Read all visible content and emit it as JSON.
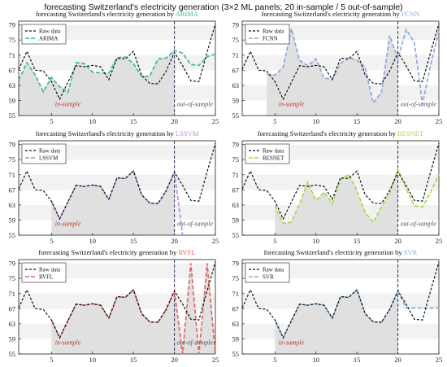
{
  "title": "forecasting Switzerland's electricity generation (3×2 ML panels; 20 in-sample / 5 out-of-sample)",
  "panel_title_prefix": "forecasting Switzerland's electricity generation by",
  "colors": {
    "raw": "#111111",
    "shade": "#e0e0e0",
    "band": "#f2f2f2",
    "marker": "#333355",
    "in_sample_text": "#c0392b",
    "out_sample_text": "#555555"
  },
  "chart_data": [
    {
      "type": "line",
      "model": "ARIMA",
      "model_color": "#3cb7a0",
      "x": [
        1,
        2,
        3,
        4,
        5,
        6,
        7,
        8,
        9,
        10,
        11,
        12,
        13,
        14,
        15,
        16,
        17,
        18,
        19,
        20,
        21,
        22,
        23,
        24,
        25
      ],
      "series": [
        {
          "name": "Raw data",
          "values": [
            67.2,
            72.0,
            67.0,
            66.8,
            64.0,
            59.3,
            63.8,
            68.2,
            67.9,
            68.3,
            67.9,
            64.5,
            70.2,
            70.0,
            72.0,
            65.7,
            63.5,
            63.4,
            66.8,
            71.7,
            68.2,
            64.2,
            64.0,
            71.8,
            79.3
          ]
        },
        {
          "name": "ARIMA",
          "values": [
            64.4,
            69.0,
            65.8,
            61.3,
            65.1,
            62.6,
            61.1,
            69.0,
            68.8,
            66.5,
            66.3,
            66.3,
            70.3,
            70.5,
            68.8,
            65.4,
            65.4,
            70.0,
            70.2,
            72.3,
            71.5,
            68.5,
            68.3,
            70.6,
            71.3
          ]
        }
      ],
      "xlim": [
        1,
        25
      ],
      "ylim": [
        55,
        80
      ],
      "xticks": [
        5,
        10,
        15,
        20,
        25
      ],
      "yticks": [
        55,
        59,
        63,
        67,
        71,
        75,
        79
      ],
      "split_x": 20,
      "shaded": "forecast",
      "annotations": [
        "in-sample",
        "out-of-sample"
      ]
    },
    {
      "type": "line",
      "model": "FCNN",
      "model_color": "#8fa8d8",
      "x": [
        1,
        2,
        3,
        4,
        5,
        6,
        7,
        8,
        9,
        10,
        11,
        12,
        13,
        14,
        15,
        16,
        17,
        18,
        19,
        20,
        21,
        22,
        23,
        24,
        25
      ],
      "series": [
        {
          "name": "Raw data",
          "values": [
            67.2,
            72.0,
            67.0,
            66.8,
            64.0,
            59.3,
            63.8,
            68.2,
            67.9,
            68.3,
            67.9,
            64.5,
            70.2,
            70.0,
            72.0,
            65.7,
            63.5,
            63.4,
            66.8,
            71.7,
            68.2,
            64.2,
            64.0,
            71.8,
            79.3
          ]
        },
        {
          "name": "FCNN",
          "values": [
            null,
            null,
            null,
            65.9,
            65.7,
            67.8,
            78.0,
            69.6,
            68.2,
            70.0,
            64.9,
            64.7,
            68.8,
            70.3,
            69.7,
            67.8,
            58.3,
            61.2,
            76.2,
            70.0,
            77.8,
            74.4,
            58.0,
            68.4,
            77.5
          ]
        }
      ],
      "xlim": [
        1,
        25
      ],
      "ylim": [
        55,
        80
      ],
      "xticks": [
        5,
        10,
        15,
        20,
        25
      ],
      "yticks": [
        55,
        59,
        63,
        67,
        71,
        75,
        79
      ],
      "split_x": 20,
      "shaded": "forecast",
      "annotations": [
        "in-sample",
        "out-of-sample"
      ]
    },
    {
      "type": "line",
      "model": "LSSVM",
      "model_color": "#b98be0",
      "x": [
        1,
        2,
        3,
        4,
        5,
        6,
        7,
        8,
        9,
        10,
        11,
        12,
        13,
        14,
        15,
        16,
        17,
        18,
        19,
        20,
        21,
        22,
        23,
        24,
        25
      ],
      "series": [
        {
          "name": "Raw data",
          "values": [
            67.2,
            72.0,
            67.0,
            66.8,
            64.0,
            59.3,
            63.8,
            68.2,
            67.9,
            68.3,
            67.9,
            64.5,
            70.2,
            70.0,
            72.0,
            65.7,
            63.5,
            63.4,
            66.8,
            71.7,
            68.2,
            64.2,
            64.0,
            71.8,
            79.3
          ]
        },
        {
          "name": "LSSVM",
          "values": [
            null,
            null,
            null,
            null,
            64.0,
            59.3,
            63.8,
            68.2,
            67.9,
            68.3,
            67.9,
            64.5,
            70.2,
            70.0,
            72.0,
            65.7,
            63.5,
            63.4,
            66.8,
            71.7,
            55.0,
            null,
            null,
            null,
            null
          ]
        }
      ],
      "xlim": [
        1,
        25
      ],
      "ylim": [
        55,
        80
      ],
      "xticks": [
        5,
        10,
        15,
        20,
        25
      ],
      "yticks": [
        55,
        59,
        63,
        67,
        71,
        75,
        79
      ],
      "split_x": 20,
      "shaded": "forecast",
      "annotations": [
        "in-sample",
        "out-of-sample"
      ]
    },
    {
      "type": "line",
      "model": "RESNET",
      "model_color": "#a6d94a",
      "x": [
        1,
        2,
        3,
        4,
        5,
        6,
        7,
        8,
        9,
        10,
        11,
        12,
        13,
        14,
        15,
        16,
        17,
        18,
        19,
        20,
        21,
        22,
        23,
        24,
        25
      ],
      "series": [
        {
          "name": "Raw data",
          "values": [
            67.2,
            72.0,
            67.0,
            66.8,
            64.0,
            59.3,
            63.8,
            68.2,
            67.9,
            68.3,
            67.9,
            64.5,
            70.2,
            70.0,
            72.0,
            65.7,
            63.5,
            63.4,
            66.8,
            71.7,
            68.2,
            64.2,
            64.0,
            71.8,
            79.3
          ]
        },
        {
          "name": "RESNET",
          "values": [
            null,
            null,
            null,
            null,
            62.9,
            58.2,
            58.5,
            63.3,
            69.0,
            64.2,
            66.4,
            63.4,
            69.8,
            71.1,
            66.8,
            61.0,
            58.4,
            62.5,
            66.2,
            72.5,
            67.2,
            62.8,
            62.4,
            66.4,
            71.1
          ]
        }
      ],
      "xlim": [
        1,
        25
      ],
      "ylim": [
        55,
        80
      ],
      "xticks": [
        5,
        10,
        15,
        20,
        25
      ],
      "yticks": [
        55,
        59,
        63,
        67,
        71,
        75,
        79
      ],
      "split_x": 20,
      "shaded": "forecast",
      "annotations": [
        "out-of-sample"
      ]
    },
    {
      "type": "line",
      "model": "RVFL",
      "model_color": "#e06666",
      "x": [
        1,
        2,
        3,
        4,
        5,
        6,
        7,
        8,
        9,
        10,
        11,
        12,
        13,
        14,
        15,
        16,
        17,
        18,
        19,
        20,
        21,
        22,
        23,
        24,
        25
      ],
      "series": [
        {
          "name": "Raw data",
          "values": [
            67.2,
            72.0,
            67.0,
            66.8,
            64.0,
            59.3,
            63.8,
            68.2,
            67.9,
            68.3,
            67.9,
            64.5,
            70.2,
            70.0,
            72.0,
            65.7,
            63.5,
            63.4,
            66.8,
            71.7,
            68.2,
            64.2,
            64.0,
            71.8,
            79.3
          ]
        },
        {
          "name": "RVFL",
          "values": [
            null,
            null,
            null,
            null,
            64.0,
            59.3,
            63.8,
            68.2,
            67.9,
            68.3,
            67.9,
            64.5,
            70.2,
            70.0,
            72.0,
            65.7,
            63.5,
            63.4,
            66.8,
            71.7,
            55.0,
            79.0,
            55.0,
            79.0,
            55.0
          ]
        }
      ],
      "xlim": [
        1,
        25
      ],
      "ylim": [
        55,
        80
      ],
      "xticks": [
        5,
        10,
        15,
        20,
        25
      ],
      "yticks": [
        55,
        59,
        63,
        67,
        71,
        75,
        79
      ],
      "split_x": 20,
      "shaded": "full",
      "annotations": [
        "in-sample",
        "out-of-sample"
      ]
    },
    {
      "type": "line",
      "model": "SVR",
      "model_color": "#7fb3d5",
      "x": [
        1,
        2,
        3,
        4,
        5,
        6,
        7,
        8,
        9,
        10,
        11,
        12,
        13,
        14,
        15,
        16,
        17,
        18,
        19,
        20,
        21,
        22,
        23,
        24,
        25
      ],
      "series": [
        {
          "name": "Raw data",
          "values": [
            67.2,
            72.0,
            67.0,
            66.8,
            64.0,
            59.3,
            63.8,
            68.2,
            67.9,
            68.3,
            67.9,
            64.5,
            70.2,
            70.0,
            72.0,
            65.7,
            63.5,
            63.4,
            66.8,
            71.7,
            68.2,
            64.2,
            64.0,
            71.8,
            79.3
          ]
        },
        {
          "name": "SVR",
          "values": [
            null,
            null,
            null,
            null,
            64.0,
            59.3,
            63.8,
            68.2,
            67.9,
            68.3,
            67.9,
            64.5,
            70.2,
            70.0,
            72.0,
            65.7,
            63.5,
            63.4,
            66.8,
            71.7,
            67.2,
            67.2,
            67.2,
            67.2,
            67.2
          ]
        }
      ],
      "xlim": [
        1,
        25
      ],
      "ylim": [
        55,
        80
      ],
      "xticks": [
        5,
        10,
        15,
        20,
        25
      ],
      "yticks": [
        55,
        59,
        63,
        67,
        71,
        75,
        79
      ],
      "split_x": 20,
      "shaded": "forecast",
      "annotations": [
        "in-sample"
      ]
    }
  ]
}
